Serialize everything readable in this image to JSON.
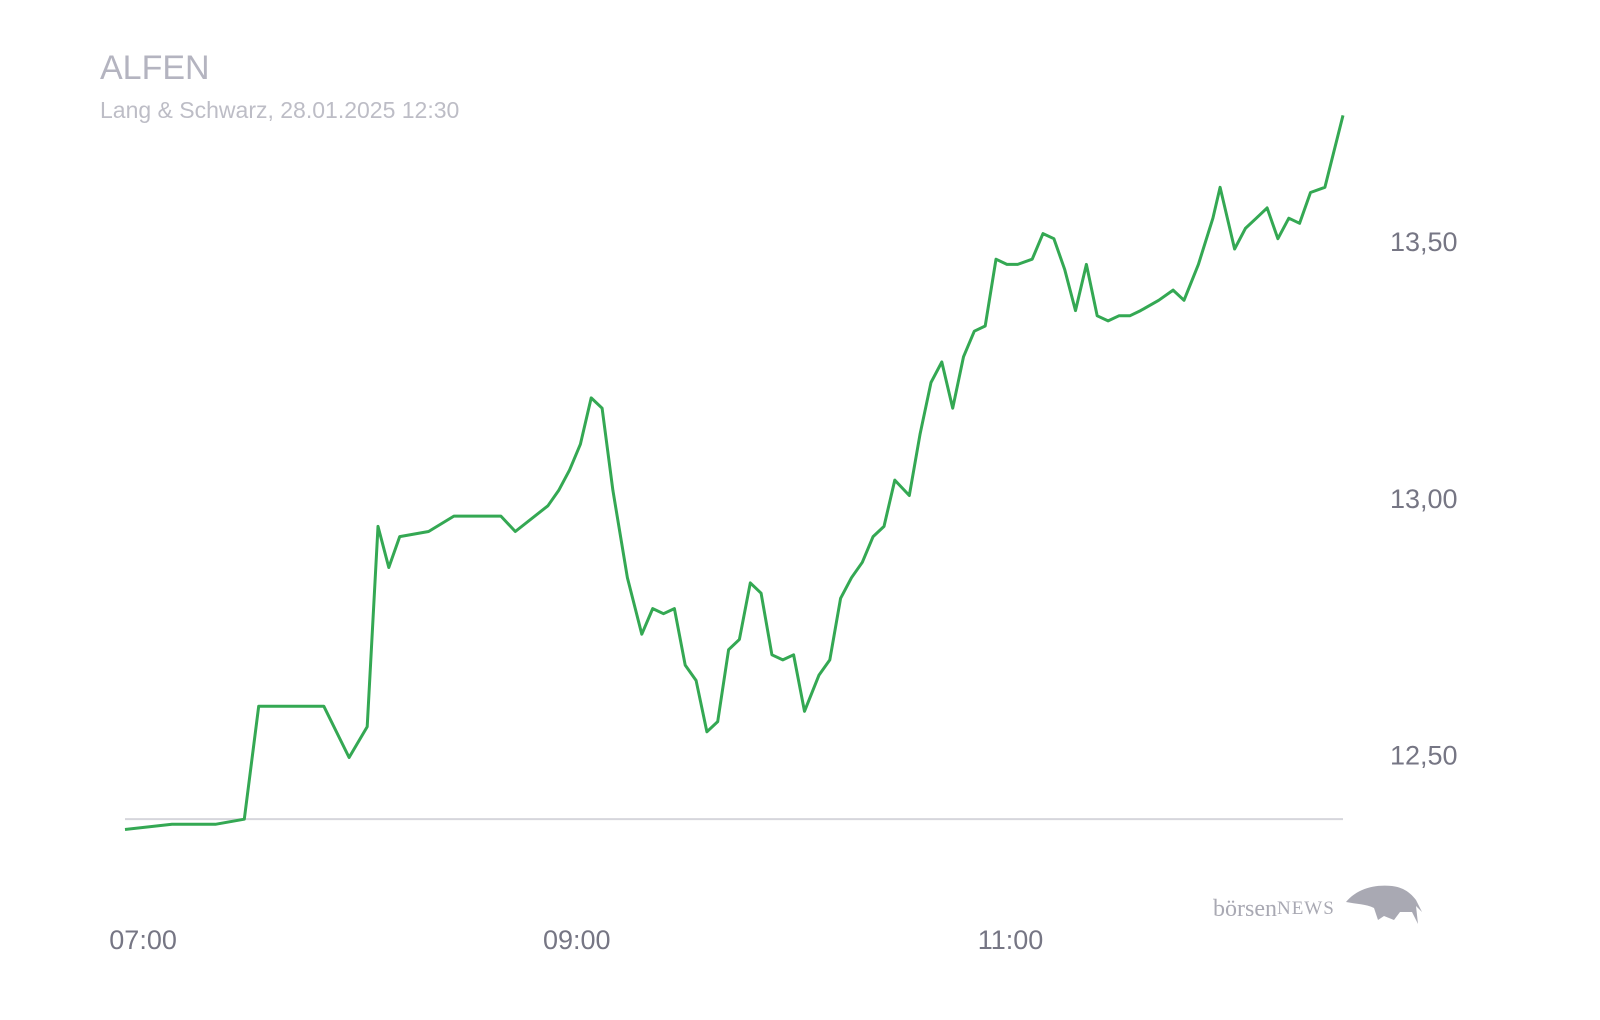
{
  "chart_data": {
    "type": "line",
    "title": "ALFEN",
    "subtitle": "Lang & Schwarz, 28.01.2025 12:30",
    "color": "#34a853",
    "x": [
      415,
      428,
      440,
      448,
      452,
      470,
      477,
      482,
      485,
      488,
      491,
      499,
      506,
      519,
      523,
      532,
      535,
      538,
      541,
      544,
      547,
      550,
      554,
      558,
      561,
      564,
      567,
      570,
      573,
      576,
      579,
      582,
      585,
      588,
      591,
      594,
      597,
      600,
      603,
      607,
      610,
      613,
      616,
      619,
      622,
      625,
      628,
      632,
      635,
      638,
      641,
      644,
      647,
      650,
      653,
      656,
      659,
      662,
      666,
      669,
      672,
      675,
      678,
      681,
      684,
      687,
      690,
      693,
      696,
      701,
      705,
      708,
      712,
      716,
      718,
      722,
      725,
      728,
      731,
      734,
      737,
      740,
      743,
      747,
      752
    ],
    "values": [
      12.36,
      12.37,
      12.37,
      12.38,
      12.6,
      12.6,
      12.5,
      12.56,
      12.95,
      12.87,
      12.93,
      12.94,
      12.97,
      12.97,
      12.94,
      12.99,
      13.02,
      13.06,
      13.11,
      13.2,
      13.18,
      13.02,
      12.85,
      12.74,
      12.79,
      12.78,
      12.79,
      12.68,
      12.65,
      12.55,
      12.57,
      12.71,
      12.73,
      12.84,
      12.82,
      12.7,
      12.69,
      12.7,
      12.59,
      12.66,
      12.69,
      12.81,
      12.85,
      12.88,
      12.93,
      12.95,
      13.04,
      13.01,
      13.13,
      13.23,
      13.27,
      13.18,
      13.28,
      13.33,
      13.34,
      13.47,
      13.46,
      13.46,
      13.47,
      13.52,
      13.51,
      13.45,
      13.37,
      13.46,
      13.36,
      13.35,
      13.36,
      13.36,
      13.37,
      13.39,
      13.41,
      13.39,
      13.46,
      13.55,
      13.61,
      13.49,
      13.53,
      13.55,
      13.57,
      13.51,
      13.55,
      13.54,
      13.6,
      13.61,
      13.75
    ],
    "baseline": 12.38,
    "xlim": [
      415,
      752
    ],
    "ylim": [
      12.32,
      13.78
    ],
    "xticks": [
      {
        "value": 420,
        "label": "07:00"
      },
      {
        "value": 540,
        "label": "09:00"
      },
      {
        "value": 660,
        "label": "11:00"
      }
    ],
    "yticks": [
      {
        "value": 12.5,
        "label": "12,50"
      },
      {
        "value": 13,
        "label": "13,00"
      },
      {
        "value": 13.5,
        "label": "13,50"
      }
    ],
    "watermark": [
      "börsen",
      "NEWS"
    ]
  }
}
